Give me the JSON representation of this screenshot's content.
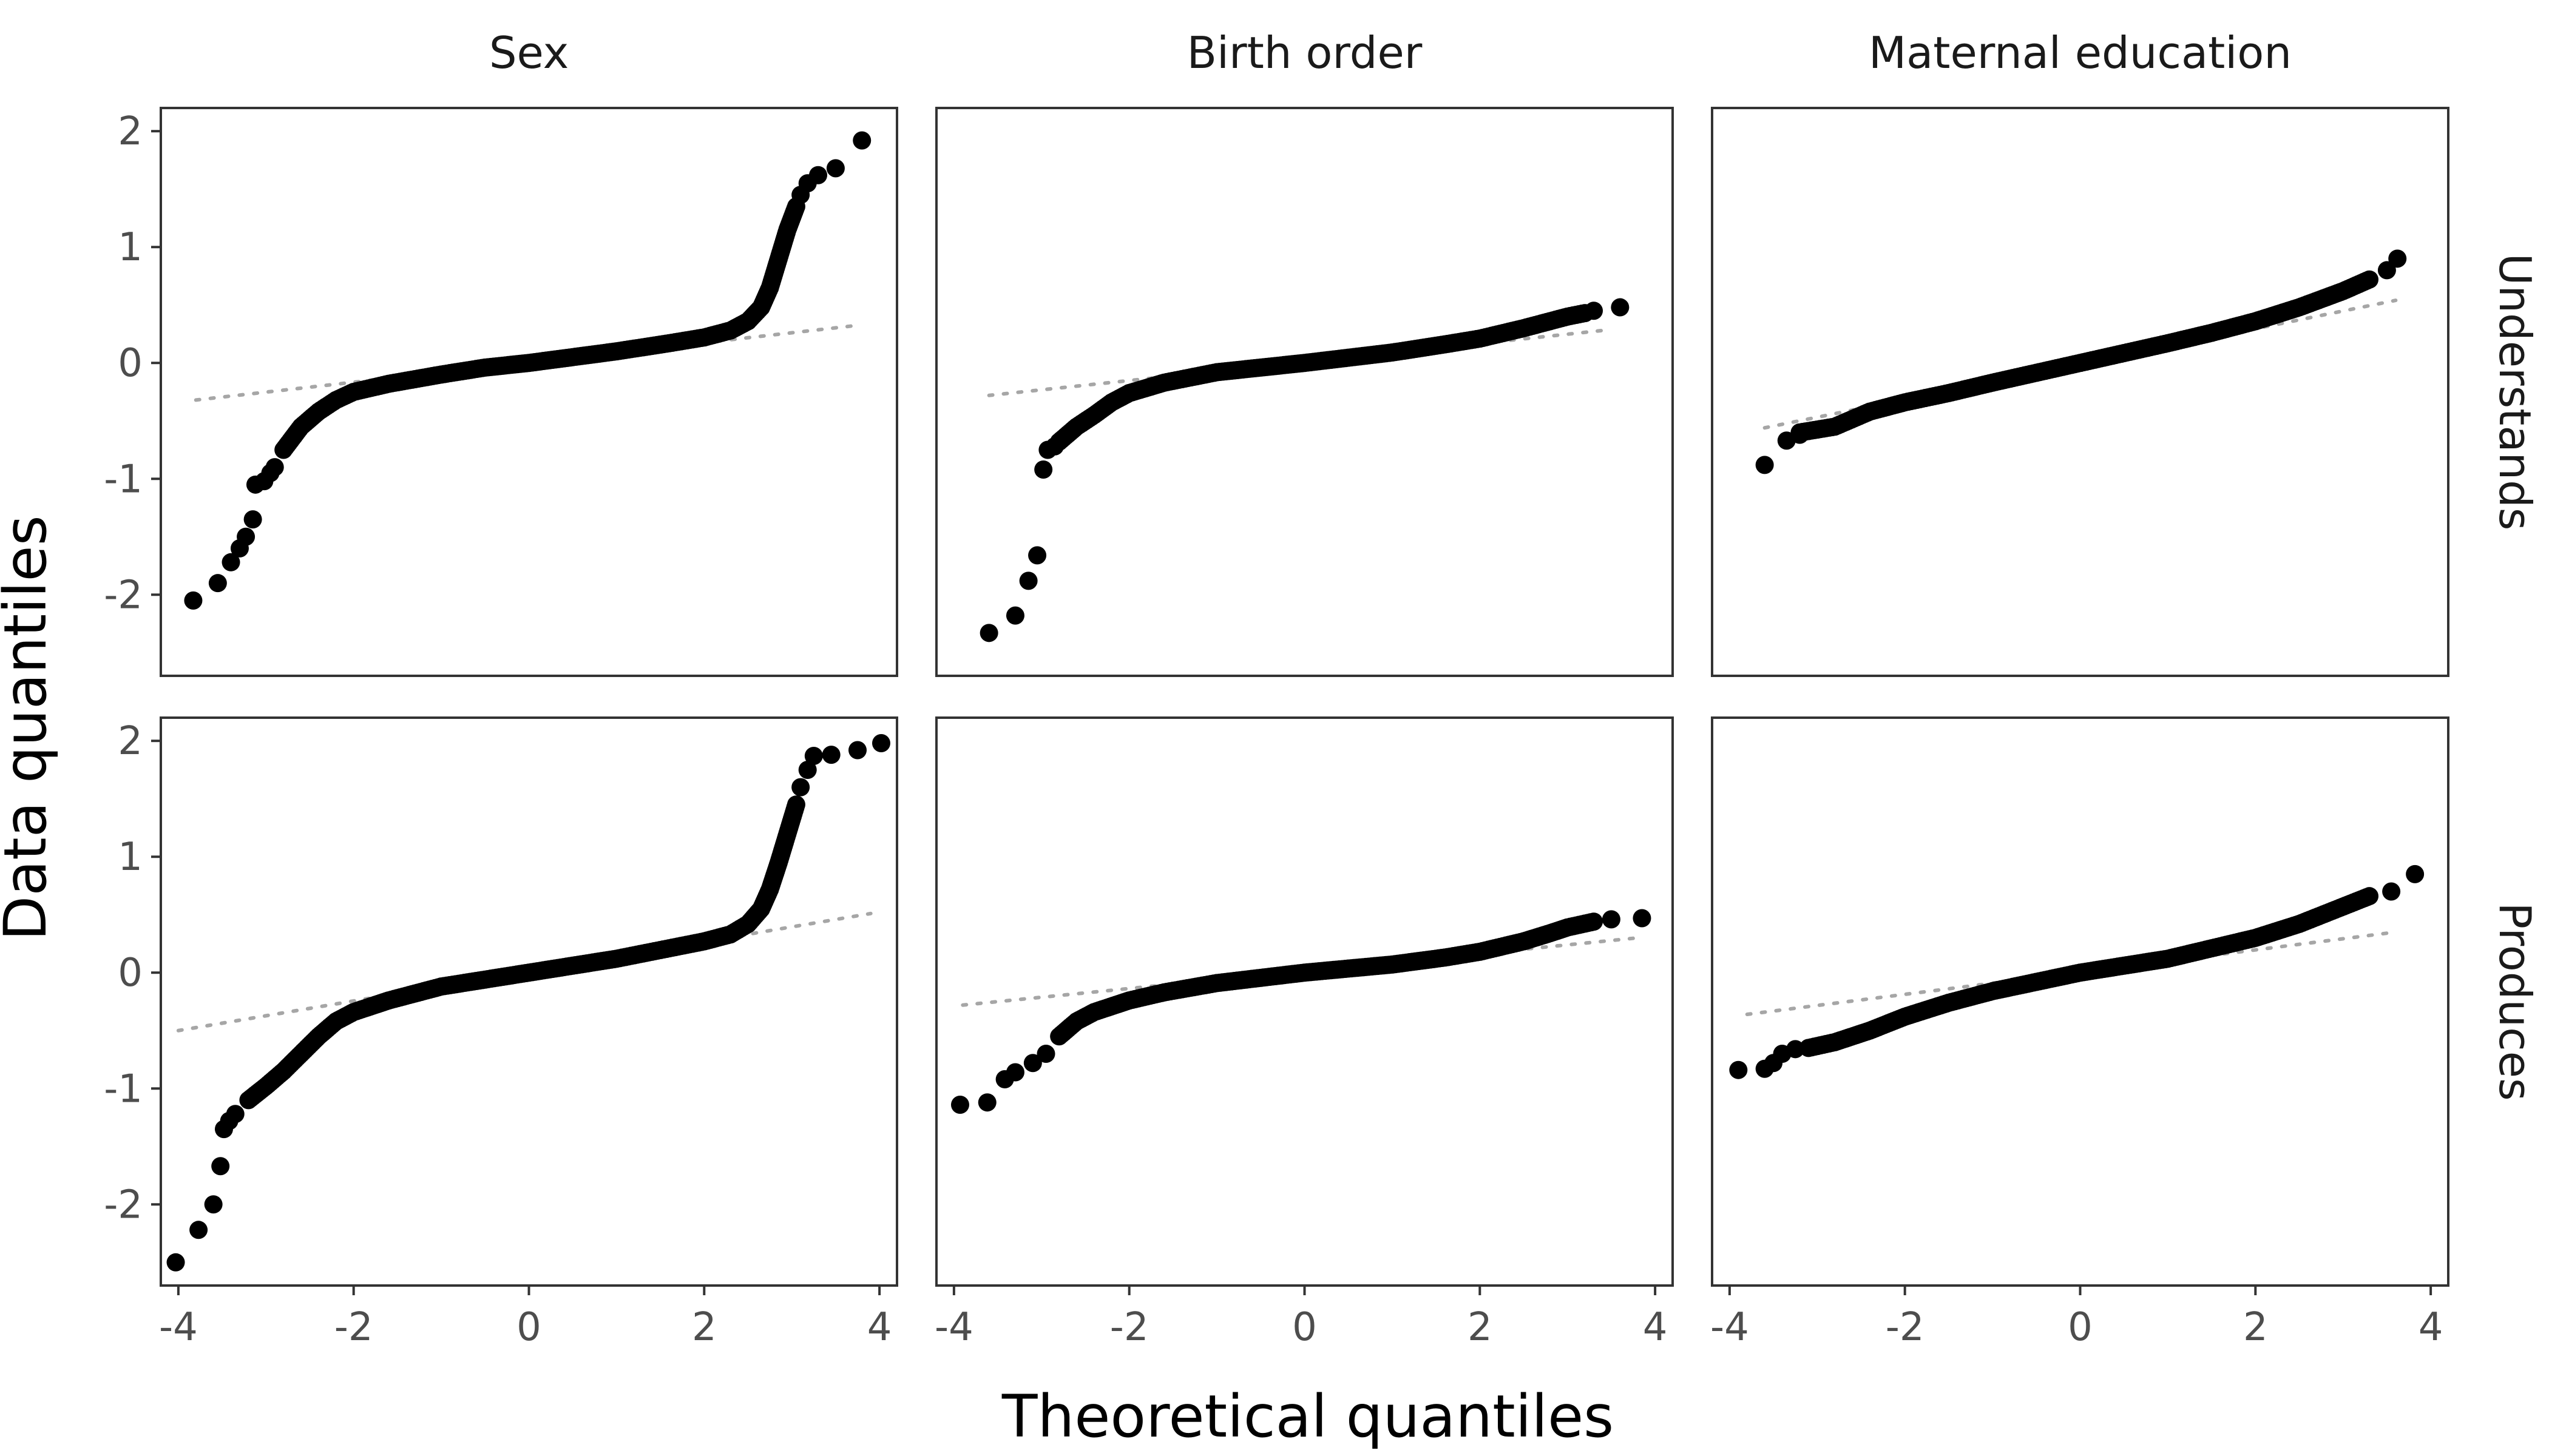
{
  "chart_data": {
    "type": "scatter",
    "xlabel": "Theoretical quantiles",
    "ylabel": "Data quantiles",
    "xlim": [
      -4.2,
      4.2
    ],
    "ylim": [
      -2.7,
      2.2
    ],
    "x_ticks": [
      -4,
      -2,
      0,
      2,
      4
    ],
    "y_ticks": [
      -2,
      -1,
      0,
      1,
      2
    ],
    "x_tick_labels": [
      "-4",
      "-2",
      "0",
      "2",
      "4"
    ],
    "y_tick_labels": [
      "-2",
      "-1",
      "0",
      "1",
      "2"
    ],
    "column_labels": [
      "Sex",
      "Birth order",
      "Maternal education"
    ],
    "row_labels": [
      "Understands",
      "Produces"
    ],
    "grid": false,
    "colors": {
      "points": "#000000",
      "reference_line": "#a6a6a6",
      "frame": "#333333"
    },
    "panels": [
      {
        "row": "Understands",
        "column": "Sex",
        "reference_line": {
          "x": [
            -3.8,
            3.7
          ],
          "y": [
            -0.32,
            0.32
          ]
        },
        "quantile_curve": [
          [
            -2.8,
            -0.75
          ],
          [
            -2.6,
            -0.55
          ],
          [
            -2.4,
            -0.42
          ],
          [
            -2.2,
            -0.32
          ],
          [
            -2.0,
            -0.25
          ],
          [
            -1.6,
            -0.18
          ],
          [
            -1.0,
            -0.1
          ],
          [
            -0.5,
            -0.04
          ],
          [
            0.0,
            0.0
          ],
          [
            0.5,
            0.05
          ],
          [
            1.0,
            0.1
          ],
          [
            1.6,
            0.17
          ],
          [
            2.0,
            0.22
          ],
          [
            2.3,
            0.28
          ],
          [
            2.5,
            0.36
          ],
          [
            2.65,
            0.48
          ],
          [
            2.75,
            0.65
          ],
          [
            2.85,
            0.9
          ],
          [
            2.95,
            1.15
          ],
          [
            3.05,
            1.35
          ]
        ],
        "points": [
          [
            -3.83,
            -2.05
          ],
          [
            -3.55,
            -1.9
          ],
          [
            -3.4,
            -1.72
          ],
          [
            -3.3,
            -1.6
          ],
          [
            -3.23,
            -1.5
          ],
          [
            -3.15,
            -1.35
          ],
          [
            -3.12,
            -1.05
          ],
          [
            -3.02,
            -1.02
          ],
          [
            -2.95,
            -0.95
          ],
          [
            -2.9,
            -0.9
          ],
          [
            3.1,
            1.45
          ],
          [
            3.18,
            1.55
          ],
          [
            3.3,
            1.62
          ],
          [
            3.5,
            1.68
          ],
          [
            3.8,
            1.92
          ]
        ]
      },
      {
        "row": "Understands",
        "column": "Birth order",
        "reference_line": {
          "x": [
            -3.6,
            3.4
          ],
          "y": [
            -0.28,
            0.28
          ]
        },
        "quantile_curve": [
          [
            -2.8,
            -0.68
          ],
          [
            -2.6,
            -0.55
          ],
          [
            -2.4,
            -0.45
          ],
          [
            -2.2,
            -0.34
          ],
          [
            -2.0,
            -0.26
          ],
          [
            -1.6,
            -0.17
          ],
          [
            -1.0,
            -0.08
          ],
          [
            0.0,
            0.0
          ],
          [
            1.0,
            0.09
          ],
          [
            1.6,
            0.16
          ],
          [
            2.0,
            0.21
          ],
          [
            2.5,
            0.3
          ],
          [
            2.8,
            0.36
          ],
          [
            3.0,
            0.4
          ],
          [
            3.2,
            0.43
          ]
        ],
        "points": [
          [
            -3.6,
            -2.33
          ],
          [
            -3.3,
            -2.18
          ],
          [
            -3.15,
            -1.88
          ],
          [
            -3.05,
            -1.66
          ],
          [
            -2.98,
            -0.92
          ],
          [
            -2.93,
            -0.75
          ],
          [
            -2.85,
            -0.72
          ],
          [
            3.3,
            0.45
          ],
          [
            3.6,
            0.48
          ]
        ]
      },
      {
        "row": "Understands",
        "column": "Maternal education",
        "reference_line": {
          "x": [
            -3.6,
            3.6
          ],
          "y": [
            -0.56,
            0.54
          ]
        },
        "quantile_curve": [
          [
            -3.2,
            -0.6
          ],
          [
            -2.8,
            -0.55
          ],
          [
            -2.4,
            -0.42
          ],
          [
            -2.0,
            -0.34
          ],
          [
            -1.5,
            -0.26
          ],
          [
            -1.0,
            -0.17
          ],
          [
            0.0,
            0.0
          ],
          [
            1.0,
            0.17
          ],
          [
            1.5,
            0.26
          ],
          [
            2.0,
            0.36
          ],
          [
            2.5,
            0.48
          ],
          [
            3.0,
            0.62
          ],
          [
            3.3,
            0.72
          ]
        ],
        "points": [
          [
            -3.6,
            -0.88
          ],
          [
            -3.35,
            -0.67
          ],
          [
            -3.2,
            -0.62
          ],
          [
            3.5,
            0.8
          ],
          [
            3.62,
            0.9
          ]
        ]
      },
      {
        "row": "Produces",
        "column": "Sex",
        "reference_line": {
          "x": [
            -4.0,
            3.9
          ],
          "y": [
            -0.5,
            0.51
          ]
        },
        "quantile_curve": [
          [
            -3.2,
            -1.1
          ],
          [
            -3.0,
            -0.98
          ],
          [
            -2.8,
            -0.85
          ],
          [
            -2.6,
            -0.7
          ],
          [
            -2.4,
            -0.55
          ],
          [
            -2.2,
            -0.42
          ],
          [
            -2.0,
            -0.34
          ],
          [
            -1.6,
            -0.24
          ],
          [
            -1.0,
            -0.12
          ],
          [
            0.0,
            0.0
          ],
          [
            1.0,
            0.12
          ],
          [
            1.6,
            0.21
          ],
          [
            2.0,
            0.27
          ],
          [
            2.3,
            0.33
          ],
          [
            2.5,
            0.42
          ],
          [
            2.65,
            0.55
          ],
          [
            2.75,
            0.72
          ],
          [
            2.85,
            0.95
          ],
          [
            2.95,
            1.2
          ],
          [
            3.05,
            1.45
          ]
        ],
        "points": [
          [
            -4.03,
            -2.5
          ],
          [
            -3.77,
            -2.22
          ],
          [
            -3.6,
            -2.0
          ],
          [
            -3.52,
            -1.67
          ],
          [
            -3.48,
            -1.35
          ],
          [
            -3.42,
            -1.28
          ],
          [
            -3.35,
            -1.22
          ],
          [
            3.1,
            1.6
          ],
          [
            3.18,
            1.75
          ],
          [
            3.25,
            1.87
          ],
          [
            3.45,
            1.88
          ],
          [
            3.75,
            1.92
          ],
          [
            4.02,
            1.98
          ]
        ]
      },
      {
        "row": "Produces",
        "column": "Birth order",
        "reference_line": {
          "x": [
            -3.9,
            3.8
          ],
          "y": [
            -0.28,
            0.3
          ]
        },
        "quantile_curve": [
          [
            -2.8,
            -0.55
          ],
          [
            -2.6,
            -0.42
          ],
          [
            -2.4,
            -0.34
          ],
          [
            -2.0,
            -0.24
          ],
          [
            -1.6,
            -0.17
          ],
          [
            -1.0,
            -0.09
          ],
          [
            0.0,
            0.0
          ],
          [
            1.0,
            0.07
          ],
          [
            1.6,
            0.13
          ],
          [
            2.0,
            0.18
          ],
          [
            2.5,
            0.27
          ],
          [
            2.8,
            0.34
          ],
          [
            3.0,
            0.39
          ],
          [
            3.3,
            0.44
          ]
        ],
        "points": [
          [
            -3.93,
            -1.14
          ],
          [
            -3.62,
            -1.12
          ],
          [
            -3.42,
            -0.92
          ],
          [
            -3.3,
            -0.86
          ],
          [
            -3.1,
            -0.78
          ],
          [
            -2.95,
            -0.7
          ],
          [
            3.5,
            0.46
          ],
          [
            3.85,
            0.47
          ]
        ]
      },
      {
        "row": "Produces",
        "column": "Maternal education",
        "reference_line": {
          "x": [
            -3.8,
            3.6
          ],
          "y": [
            -0.36,
            0.35
          ]
        },
        "quantile_curve": [
          [
            -3.1,
            -0.65
          ],
          [
            -2.8,
            -0.6
          ],
          [
            -2.4,
            -0.5
          ],
          [
            -2.0,
            -0.38
          ],
          [
            -1.5,
            -0.26
          ],
          [
            -1.0,
            -0.16
          ],
          [
            0.0,
            0.0
          ],
          [
            1.0,
            0.12
          ],
          [
            1.5,
            0.21
          ],
          [
            2.0,
            0.3
          ],
          [
            2.5,
            0.42
          ],
          [
            3.0,
            0.57
          ],
          [
            3.3,
            0.66
          ]
        ],
        "points": [
          [
            -3.9,
            -0.84
          ],
          [
            -3.6,
            -0.83
          ],
          [
            -3.5,
            -0.78
          ],
          [
            -3.4,
            -0.7
          ],
          [
            -3.25,
            -0.66
          ],
          [
            3.55,
            0.7
          ],
          [
            3.82,
            0.85
          ]
        ]
      }
    ]
  }
}
